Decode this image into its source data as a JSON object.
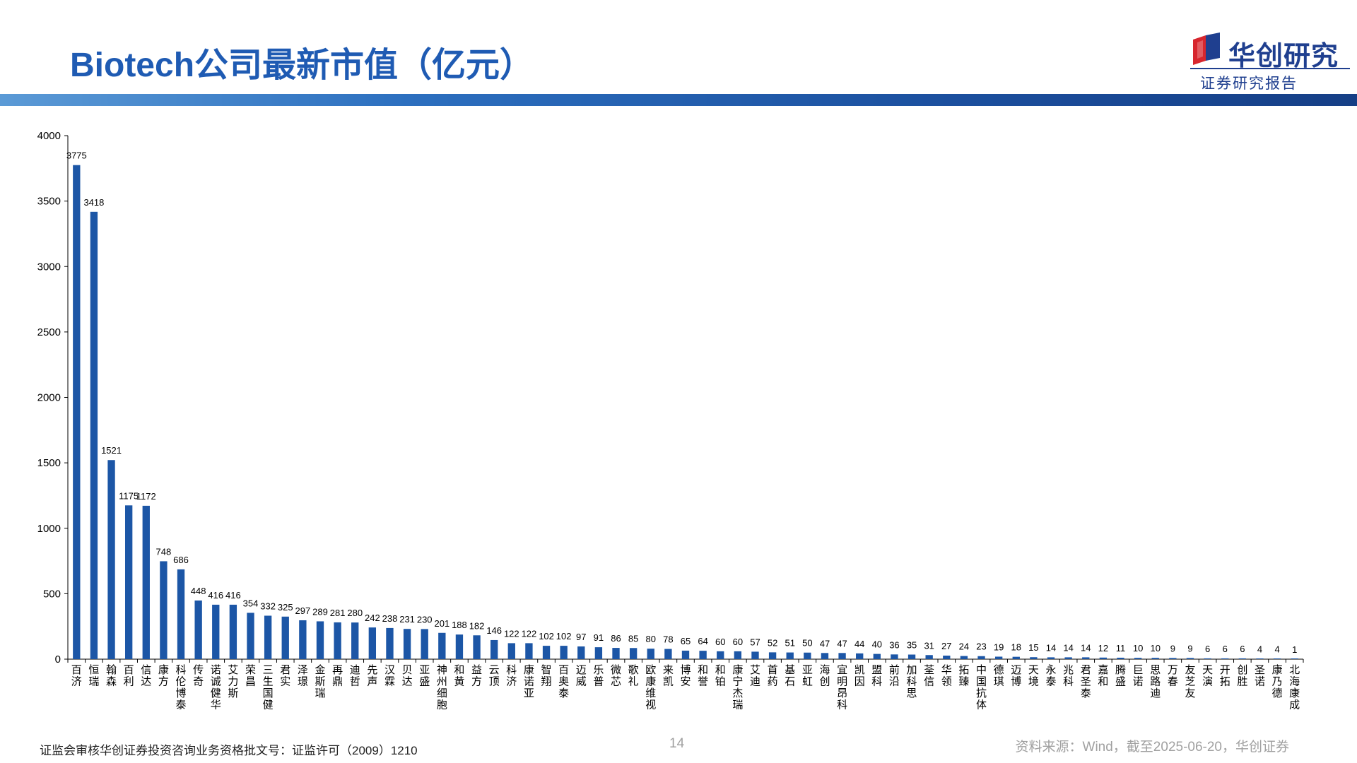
{
  "title": "Biotech公司最新市值（亿元）",
  "brand": {
    "name": "华创研究",
    "subtitle": "证券研究报告",
    "accent_color": "#1f5bb3",
    "logo_red": "#d7262e",
    "logo_blue": "#1f3f8f"
  },
  "footer": {
    "license": "证监会审核华创证券投资咨询业务资格批文号：证监许可（2009）1210",
    "page": "14",
    "source": "资料来源：Wind，截至2025-06-20，华创证券"
  },
  "chart_data": {
    "type": "bar",
    "title": "",
    "xlabel": "",
    "ylabel": "",
    "ylim": [
      0,
      4000
    ],
    "yticks": [
      0,
      500,
      1000,
      1500,
      2000,
      2500,
      3000,
      3500,
      4000
    ],
    "grid": false,
    "legend": "none",
    "bar_color": "#1c56a6",
    "categories": [
      "百济",
      "恒瑞",
      "翰森",
      "百利",
      "信达",
      "康方",
      "科伦博泰",
      "传奇",
      "诺诚健华",
      "艾力斯",
      "荣昌",
      "三生国健",
      "君实",
      "泽璟",
      "金斯瑞",
      "再鼎",
      "迪哲",
      "先声",
      "汉霖",
      "贝达",
      "亚盛",
      "神州细胞",
      "和黄",
      "益方",
      "云顶",
      "科济",
      "康诺亚",
      "智翔",
      "百奥泰",
      "迈威",
      "乐普",
      "微芯",
      "歌礼",
      "欧康维视",
      "来凯",
      "博安",
      "和誉",
      "和铂",
      "康宁杰瑞",
      "艾迪",
      "首药",
      "基石",
      "亚虹",
      "海创",
      "宜明昂科",
      "凯因",
      "盟科",
      "前沿",
      "加科思",
      "荃信",
      "华领",
      "拓臻",
      "中国抗体",
      "德琪",
      "迈博",
      "天境",
      "永泰",
      "兆科",
      "君圣泰",
      "嘉和",
      "腾盛",
      "巨诺",
      "思路迪",
      "万春",
      "友芝友",
      "天演",
      "开拓",
      "创胜",
      "圣诺",
      "康乃德",
      "北海康成"
    ],
    "values": [
      3775,
      3418,
      1521,
      1175,
      1172,
      748,
      686,
      448,
      416,
      416,
      354,
      332,
      325,
      297,
      289,
      281,
      280,
      242,
      238,
      231,
      230,
      201,
      188,
      182,
      146,
      122,
      122,
      102,
      102,
      97,
      91,
      86,
      85,
      80,
      78,
      65,
      64,
      60,
      60,
      57,
      52,
      51,
      50,
      47,
      47,
      44,
      40,
      36,
      35,
      31,
      27,
      24,
      23,
      19,
      18,
      15,
      14,
      14,
      14,
      12,
      11,
      10,
      10,
      9,
      9,
      6,
      6,
      6,
      4,
      4,
      1
    ],
    "data_labels": [
      "3775",
      "3418",
      "1521",
      "1175",
      "1172",
      "748",
      "686",
      "448",
      "416",
      "416",
      "354",
      "332",
      "325",
      "297",
      "289",
      "281",
      "280",
      "242",
      "238",
      "231",
      "230",
      "201",
      "188",
      "182",
      "146",
      "122",
      "122",
      "102",
      "102",
      "97",
      "91",
      "86",
      "85",
      "80",
      "78",
      "65",
      "64",
      "60",
      "60",
      "57",
      "52",
      "51",
      "50",
      "47",
      "47",
      "44",
      "40",
      "36",
      "35",
      "31",
      "27",
      "24",
      "23",
      "19",
      "18",
      "15",
      "14",
      "14",
      "14",
      "12",
      "11",
      "10",
      "10",
      "9",
      "9",
      "6",
      "6",
      "6",
      "4",
      "4",
      "1"
    ]
  }
}
